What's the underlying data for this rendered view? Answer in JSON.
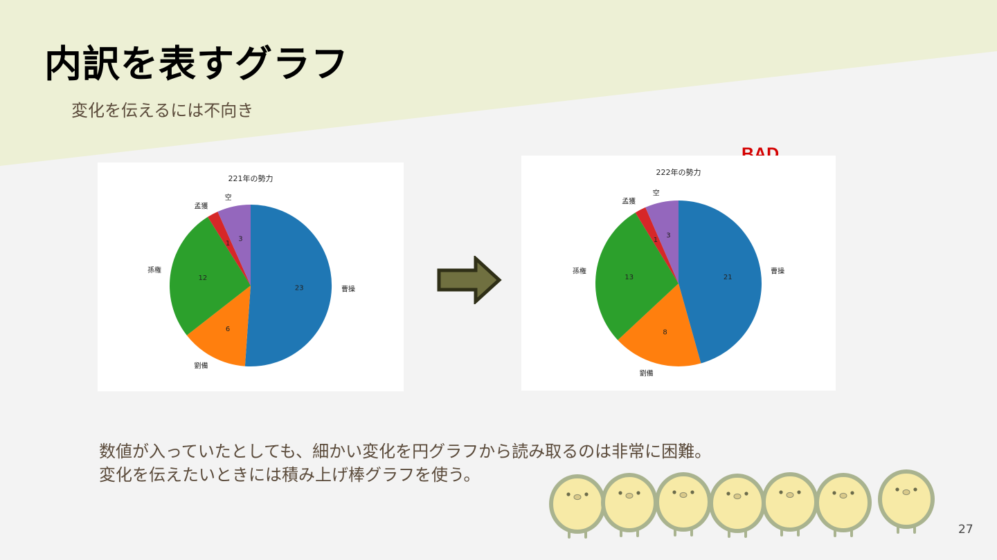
{
  "slide": {
    "title": "内訳を表すグラフ",
    "subtitle": "変化を伝えるには不向き",
    "bad_label": "BAD",
    "body_lines": [
      "数値が入っていたとしても、細かい変化を円グラフから読み取るのは非常に困難。",
      "変化を伝えたいときには積み上げ棒グラフを使う。"
    ],
    "page_number": "27",
    "colors": {
      "banner": "#edf0d5",
      "background": "#f3f3f3",
      "bad": "#d40000",
      "arrow_fill": "#707040",
      "arrow_stroke": "#2f2f17"
    },
    "icons": [
      "right-arrow-icon",
      "chick-character-icon"
    ]
  },
  "chart_data": [
    {
      "type": "pie",
      "title": "221年の勢力",
      "start_angle": 90,
      "direction": "clockwise",
      "categories": [
        "曹操",
        "劉備",
        "孫権",
        "孟獲",
        "空"
      ],
      "values": [
        23,
        6,
        12,
        1,
        3
      ],
      "colors": [
        "#1f77b4",
        "#ff7f0e",
        "#2ca02c",
        "#d62728",
        "#9467bd"
      ]
    },
    {
      "type": "pie",
      "title": "222年の勢力",
      "start_angle": 90,
      "direction": "clockwise",
      "categories": [
        "曹操",
        "劉備",
        "孫権",
        "孟獲",
        "空"
      ],
      "values": [
        21,
        8,
        13,
        1,
        3
      ],
      "colors": [
        "#1f77b4",
        "#ff7f0e",
        "#2ca02c",
        "#d62728",
        "#9467bd"
      ]
    }
  ]
}
